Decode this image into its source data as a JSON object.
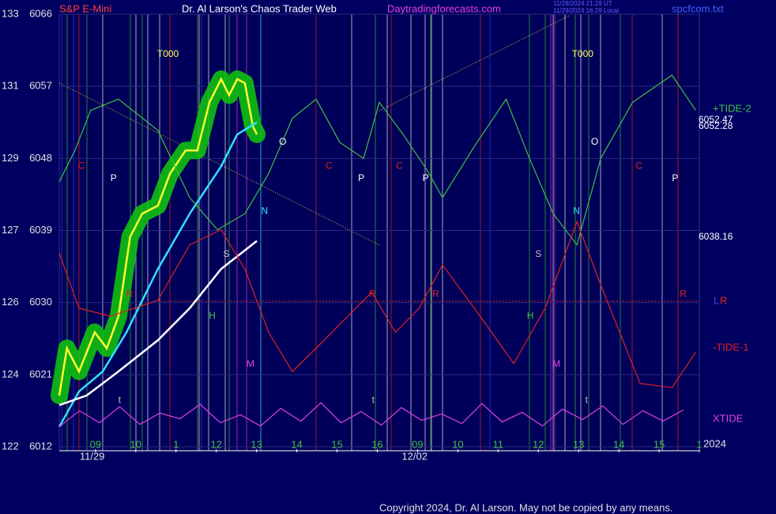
{
  "header": {
    "instrument": "S&P E-Mini",
    "title": "Dr. Al Larson's Chaos Trader Web",
    "site": "Daytradingforecasts.com",
    "stamp1": "11/29/2024 21:29 UT",
    "stamp2": "11/29/2024 16:29 Local",
    "file": "spcfcom.txt"
  },
  "chart_data": {
    "type": "line",
    "ylim": [
      6012,
      6066
    ],
    "yticks": [
      6012,
      6021,
      6030,
      6039,
      6048,
      6057,
      6066
    ],
    "y2ticks": [
      122,
      124,
      126,
      127,
      129,
      131,
      133
    ],
    "xlim": [
      -0.9,
      15
    ],
    "xticks": [
      {
        "value": 0,
        "label": "09"
      },
      {
        "value": 1,
        "label": "10"
      },
      {
        "value": 2,
        "label": "1"
      },
      {
        "value": 3,
        "label": "12"
      },
      {
        "value": 4,
        "label": "13"
      },
      {
        "value": 5,
        "label": "14"
      },
      {
        "value": 6,
        "label": "15"
      },
      {
        "value": 7,
        "label": "16"
      },
      {
        "value": 8,
        "label": "09"
      },
      {
        "value": 9,
        "label": "10"
      },
      {
        "value": 10,
        "label": "11"
      },
      {
        "value": 11,
        "label": "12"
      },
      {
        "value": 12,
        "label": "13"
      },
      {
        "value": 13,
        "label": "14"
      },
      {
        "value": 14,
        "label": "15"
      },
      {
        "value": 15,
        "label": "1"
      }
    ],
    "date_labels": [
      "11/29",
      "12/02"
    ],
    "year": "2024",
    "grid": true,
    "series": [
      {
        "color": "#ffff30",
        "x": [
          -0.9,
          -0.71,
          -0.41,
          -0.02,
          0.28,
          0.57,
          0.86,
          1.16,
          1.55,
          1.85,
          2.24,
          2.53,
          2.83,
          3.12,
          3.32,
          3.52,
          3.71,
          3.91,
          4.01
        ],
        "values": [
          6018.4,
          6024.3,
          6021.4,
          6026.3,
          6024.3,
          6028.3,
          6038.2,
          6041.1,
          6042.1,
          6046.1,
          6049,
          6049,
          6055,
          6057.9,
          6055.9,
          6057.9,
          6057.4,
          6052,
          6051
        ]
      },
      {
        "color": "#30e0ff",
        "x": [
          -0.9,
          -0.41,
          0.18,
          0.77,
          1.55,
          2.34,
          3.12,
          3.52,
          4.01
        ],
        "values": [
          6014.5,
          6018.9,
          6021.4,
          6026.3,
          6034.2,
          6041.1,
          6047,
          6051,
          6052.5
        ]
      },
      {
        "color": "#ffffff",
        "x": [
          -0.9,
          -0.22,
          0.57,
          1.55,
          2.34,
          3.12,
          4.01
        ],
        "values": [
          6017.2,
          6018.4,
          6021.4,
          6025.3,
          6029.3,
          6034.2,
          6037.7
        ]
      },
      {
        "name": "+TIDE-2",
        "color": "#40c040",
        "x": [
          -0.9,
          -0.51,
          -0.12,
          0.57,
          1.55,
          2.34,
          3.03,
          3.71,
          4.3,
          4.89,
          5.48,
          6.07,
          6.66,
          7.05,
          7.64,
          8.23,
          8.62,
          9.41,
          10.2,
          10.78,
          11.37,
          11.96,
          12.55,
          13.34,
          14.32,
          14.91
        ],
        "values": [
          6045.1,
          6049,
          6054,
          6055.4,
          6051.5,
          6043.1,
          6039.1,
          6041.1,
          6046.1,
          6053,
          6055.4,
          6050,
          6048,
          6055,
          6051,
          6046.6,
          6043.1,
          6049.5,
          6055.4,
          6048,
          6041.1,
          6037.2,
          6048,
          6055,
          6058.4,
          6054
        ]
      },
      {
        "name": "-TIDE-1",
        "color": "#e02020",
        "x": [
          -0.9,
          -0.41,
          0.37,
          1.55,
          2.34,
          3.12,
          3.71,
          4.3,
          4.89,
          5.48,
          6.27,
          6.86,
          7.45,
          8.04,
          8.62,
          9.41,
          10.39,
          11.17,
          11.96,
          12.55,
          13.53,
          14.32,
          14.91
        ],
        "values": [
          6036.2,
          6029.3,
          6028.3,
          6030.3,
          6037.2,
          6039.1,
          6034.2,
          6026.3,
          6021.4,
          6024.3,
          6028.3,
          6031.3,
          6026.3,
          6029.3,
          6034.7,
          6029.3,
          6022.4,
          6029.3,
          6040.1,
          6032.2,
          6019.9,
          6019.4,
          6023.8
        ]
      },
      {
        "name": "XTIDE",
        "color": "#e040e0",
        "x": [
          -0.9,
          -0.4,
          0.1,
          0.6,
          1.1,
          1.6,
          2.1,
          2.6,
          3.1,
          3.6,
          4.1,
          4.6,
          5.1,
          5.6,
          6.1,
          6.6,
          7.1,
          7.6,
          8.1,
          8.6,
          9.1,
          9.6,
          10.1,
          10.6,
          11.1,
          11.6,
          12.1,
          12.6,
          13.1,
          13.6,
          14.1,
          14.6
        ],
        "values": [
          6014.5,
          6016.5,
          6015,
          6017,
          6014.8,
          6016.2,
          6015.5,
          6017.3,
          6015,
          6016,
          6014.6,
          6016.8,
          6015.2,
          6017.5,
          6015,
          6016.4,
          6014.7,
          6016.9,
          6015.3,
          6016.1,
          6014.9,
          6017.4,
          6015.1,
          6016.3,
          6014.6,
          6016.7,
          6015.4,
          6017.1,
          6014.8,
          6016.5,
          6015.2,
          6016.6
        ]
      }
    ],
    "last_values": [
      6052.47,
      6052.28,
      6038.16
    ],
    "lr_labels": [
      {
        "text": "L",
        "color": "#4040ff"
      },
      {
        "text": "R",
        "color": "#e02020"
      }
    ],
    "lr_level": 6030.2,
    "annotations": [
      {
        "text": "T000",
        "x": 1.8,
        "y": 6061,
        "color": "#ffff60"
      },
      {
        "text": "T000",
        "x": 12.1,
        "y": 6061,
        "color": "#ffff60"
      },
      {
        "text": "C",
        "x": -0.35,
        "y": 6047,
        "color": "#e02020"
      },
      {
        "text": "P",
        "x": 0.45,
        "y": 6045.5,
        "color": "#ffffff"
      },
      {
        "text": "R",
        "x": 0.85,
        "y": 6031,
        "color": "#e02020"
      },
      {
        "text": "S",
        "x": 3.25,
        "y": 6036,
        "color": "#c0c0c0"
      },
      {
        "text": "H",
        "x": 2.9,
        "y": 6028.3,
        "color": "#40c040"
      },
      {
        "text": "M",
        "x": 3.85,
        "y": 6022.3,
        "color": "#e040e0"
      },
      {
        "text": "N",
        "x": 4.2,
        "y": 6041.4,
        "color": "#30e0ff"
      },
      {
        "text": "O",
        "x": 4.65,
        "y": 6050,
        "color": "#ffffff"
      },
      {
        "text": "C",
        "x": 5.8,
        "y": 6047,
        "color": "#e02020"
      },
      {
        "text": "P",
        "x": 6.6,
        "y": 6045.5,
        "color": "#ffffff"
      },
      {
        "text": "R",
        "x": 6.88,
        "y": 6031,
        "color": "#e02020"
      },
      {
        "text": "C",
        "x": 7.55,
        "y": 6047,
        "color": "#e02020"
      },
      {
        "text": "P",
        "x": 8.2,
        "y": 6045.5,
        "color": "#ffffff"
      },
      {
        "text": "R",
        "x": 8.45,
        "y": 6031,
        "color": "#e02020"
      },
      {
        "text": "S",
        "x": 11.0,
        "y": 6036,
        "color": "#c0c0c0"
      },
      {
        "text": "H",
        "x": 10.8,
        "y": 6028.3,
        "color": "#40c040"
      },
      {
        "text": "M",
        "x": 11.45,
        "y": 6022.3,
        "color": "#e040e0"
      },
      {
        "text": "N",
        "x": 11.95,
        "y": 6041.4,
        "color": "#30e0ff"
      },
      {
        "text": "O",
        "x": 12.4,
        "y": 6050,
        "color": "#ffffff"
      },
      {
        "text": "C",
        "x": 13.5,
        "y": 6047,
        "color": "#e02020"
      },
      {
        "text": "P",
        "x": 14.4,
        "y": 6045.5,
        "color": "#ffffff"
      },
      {
        "text": "R",
        "x": 14.6,
        "y": 6031,
        "color": "#e02020"
      },
      {
        "text": "t",
        "x": 0.6,
        "y": 6017.8,
        "color": "#c0c0c0"
      },
      {
        "text": "t",
        "x": 6.9,
        "y": 6017.8,
        "color": "#c0c0c0"
      },
      {
        "text": "t",
        "x": 12.2,
        "y": 6017.8,
        "color": "#c0c0c0"
      }
    ]
  },
  "footer": {
    "copyright": "Copyright 2024, Dr. Al Larson. May not be copied by any means."
  }
}
